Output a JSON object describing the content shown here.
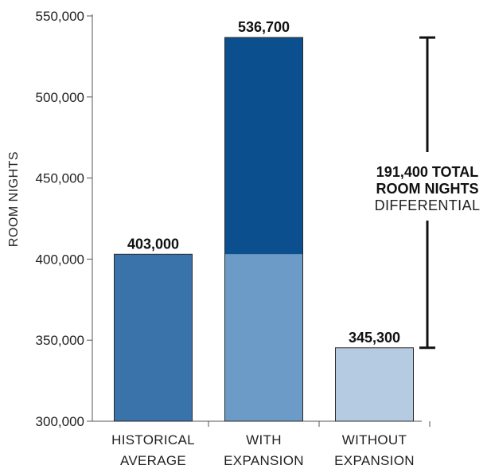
{
  "chart_data": {
    "type": "bar",
    "ylabel": "ROOM NIGHTS",
    "ylim": [
      300000,
      550000
    ],
    "yticks": [
      {
        "value": 550000,
        "label": "550,000"
      },
      {
        "value": 500000,
        "label": "500,000"
      },
      {
        "value": 450000,
        "label": "450,000"
      },
      {
        "value": 400000,
        "label": "400,000"
      },
      {
        "value": 350000,
        "label": "350,000"
      },
      {
        "value": 300000,
        "label": "300,000"
      }
    ],
    "categories": [
      {
        "line1": "HISTORICAL",
        "line2": "AVERAGE"
      },
      {
        "line1": "WITH",
        "line2": "EXPANSION"
      },
      {
        "line1": "WITHOUT",
        "line2": "EXPANSION"
      }
    ],
    "bars": [
      {
        "value": 403000,
        "label": "403,000",
        "color": "#3a72aa"
      },
      {
        "value": 536700,
        "label": "536,700",
        "color": "#0b4f8f",
        "base_value": 403000,
        "base_color": "#6b9bc6"
      },
      {
        "value": 345300,
        "label": "345,300",
        "color": "#b4cbe1"
      }
    ],
    "annotation": {
      "line1": "191,400 TOTAL",
      "line2": "ROOM NIGHTS",
      "line3": "DIFFERENTIAL",
      "from": 345300,
      "to": 536700
    },
    "grid": false
  }
}
